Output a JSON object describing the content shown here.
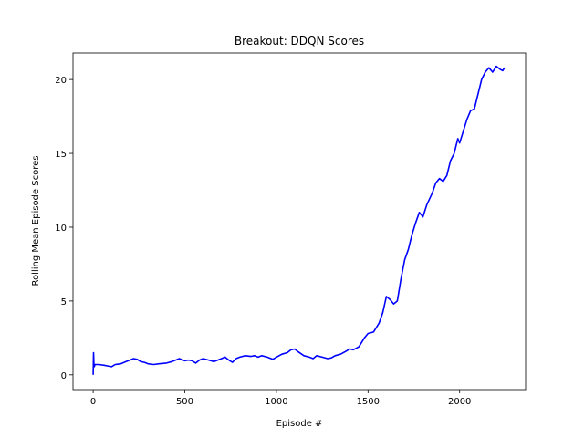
{
  "chart_data": {
    "type": "line",
    "title": "Breakout: DDQN Scores",
    "xlabel": "Episode #",
    "ylabel": "Rolling Mean Episode Scores",
    "xlim": [
      -110,
      2360
    ],
    "ylim": [
      -1.0,
      21.8
    ],
    "xticks": [
      0,
      500,
      1000,
      1500,
      2000
    ],
    "yticks": [
      0,
      5,
      10,
      15,
      20
    ],
    "grid": false,
    "legend": "none",
    "series": [
      {
        "color": "#0000ff",
        "x": [
          0,
          2,
          4,
          6,
          10,
          30,
          60,
          80,
          100,
          120,
          150,
          180,
          200,
          220,
          240,
          260,
          280,
          300,
          330,
          360,
          400,
          430,
          450,
          470,
          500,
          520,
          540,
          560,
          580,
          600,
          630,
          660,
          700,
          720,
          740,
          760,
          780,
          800,
          830,
          860,
          880,
          900,
          920,
          950,
          980,
          1000,
          1030,
          1060,
          1080,
          1100,
          1120,
          1150,
          1180,
          1200,
          1220,
          1250,
          1280,
          1300,
          1320,
          1350,
          1380,
          1400,
          1420,
          1450,
          1480,
          1500,
          1530,
          1560,
          1580,
          1600,
          1620,
          1640,
          1660,
          1680,
          1700,
          1720,
          1740,
          1760,
          1780,
          1800,
          1820,
          1850,
          1870,
          1890,
          1910,
          1930,
          1950,
          1970,
          1990,
          2000,
          2020,
          2040,
          2060,
          2080,
          2100,
          2120,
          2140,
          2160,
          2180,
          2200,
          2220,
          2235,
          2245
        ],
        "y": [
          0.0,
          1.5,
          0.7,
          0.55,
          0.7,
          0.7,
          0.65,
          0.6,
          0.55,
          0.7,
          0.75,
          0.9,
          1.0,
          1.1,
          1.05,
          0.9,
          0.85,
          0.75,
          0.7,
          0.75,
          0.8,
          0.9,
          1.0,
          1.1,
          0.95,
          1.0,
          0.95,
          0.8,
          1.0,
          1.1,
          1.0,
          0.9,
          1.1,
          1.2,
          1.0,
          0.85,
          1.1,
          1.2,
          1.3,
          1.25,
          1.3,
          1.2,
          1.3,
          1.2,
          1.05,
          1.2,
          1.4,
          1.5,
          1.7,
          1.75,
          1.55,
          1.3,
          1.2,
          1.1,
          1.3,
          1.2,
          1.1,
          1.15,
          1.3,
          1.4,
          1.6,
          1.75,
          1.7,
          1.9,
          2.5,
          2.8,
          2.9,
          3.5,
          4.2,
          5.3,
          5.1,
          4.8,
          5.0,
          6.5,
          7.8,
          8.5,
          9.5,
          10.3,
          11.0,
          10.7,
          11.5,
          12.3,
          13.0,
          13.3,
          13.1,
          13.5,
          14.5,
          15.0,
          16.0,
          15.7,
          16.5,
          17.3,
          17.9,
          18.0,
          19.0,
          20.0,
          20.5,
          20.8,
          20.5,
          20.9,
          20.7,
          20.6,
          20.8
        ]
      }
    ]
  }
}
